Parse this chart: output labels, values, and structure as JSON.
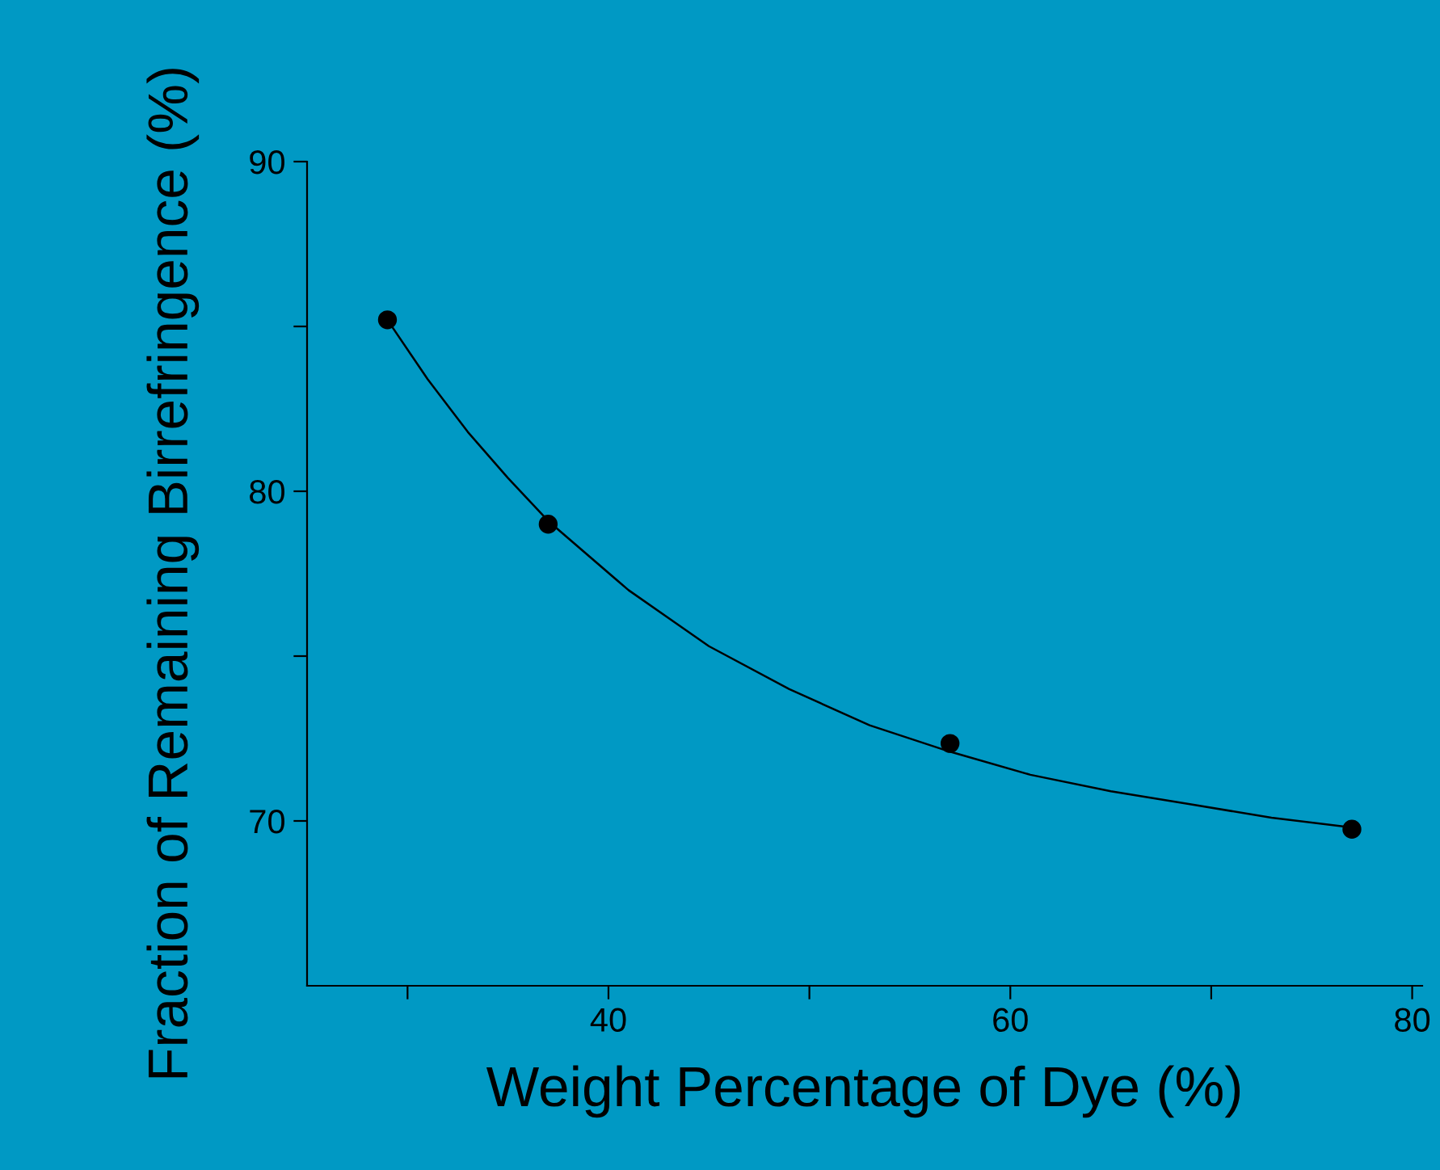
{
  "chart_data": {
    "type": "scatter",
    "xlabel": "Weight Percentage of Dye (%)",
    "ylabel": "Fraction of Remaining Birrefringence (%)",
    "xlim": [
      25,
      80.5
    ],
    "xticks": [
      {
        "value": 30,
        "label": null
      },
      40,
      {
        "value": 50,
        "label": null
      },
      60,
      {
        "value": 70,
        "label": null
      },
      80
    ],
    "ylim": [
      65,
      90
    ],
    "yticks": [
      70,
      {
        "value": 75,
        "label": null
      },
      80,
      {
        "value": 85,
        "label": null
      },
      90
    ],
    "grid": false,
    "legend": false,
    "marker": "circle",
    "series": [
      {
        "color": "#000000",
        "x": [
          29,
          37,
          57,
          77
        ],
        "values": [
          85.2,
          79.0,
          72.35,
          69.75
        ]
      },
      {
        "type": "line",
        "color": "#000000",
        "line_style": "solid",
        "marker": "none",
        "x": [
          29,
          31,
          33,
          35,
          37,
          41,
          45,
          49,
          53,
          57,
          61,
          65,
          69,
          73,
          77
        ],
        "values": [
          85.2,
          83.4,
          81.8,
          80.4,
          79.1,
          77.0,
          75.3,
          74.0,
          72.9,
          72.1,
          71.4,
          70.9,
          70.5,
          70.1,
          69.8
        ]
      }
    ]
  }
}
